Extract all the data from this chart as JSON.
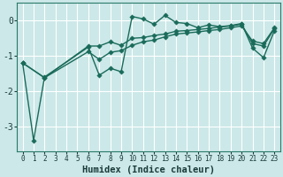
{
  "xlabel": "Humidex (Indice chaleur)",
  "xlim": [
    -0.5,
    23.5
  ],
  "ylim": [
    -3.7,
    0.5
  ],
  "xtick_labels": [
    "0",
    "1",
    "2",
    "3",
    "4",
    "5",
    "6",
    "7",
    "8",
    "9",
    "10",
    "11",
    "12",
    "13",
    "14",
    "15",
    "16",
    "17",
    "18",
    "19",
    "20",
    "21",
    "22",
    "23"
  ],
  "yticks": [
    0,
    -1,
    -2,
    -3
  ],
  "bg_color": "#cce8e8",
  "grid_color": "#ffffff",
  "line_color": "#1a6b5a",
  "line1_x": [
    0,
    1,
    2,
    6,
    7,
    8,
    9,
    10,
    11,
    12,
    13,
    14,
    15,
    16,
    17,
    18,
    19,
    20,
    21,
    22,
    23
  ],
  "line1_y": [
    -1.2,
    -3.4,
    -1.6,
    -0.75,
    -1.55,
    -1.35,
    -1.45,
    0.12,
    0.05,
    -0.1,
    0.15,
    -0.05,
    -0.08,
    -0.2,
    -0.12,
    -0.17,
    -0.14,
    -0.08,
    -0.78,
    -1.05,
    -0.28
  ],
  "line2_x": [
    0,
    2,
    6,
    7,
    8,
    9,
    10,
    11,
    12,
    13,
    14,
    15,
    16,
    17,
    18,
    19,
    20,
    21,
    22,
    23
  ],
  "line2_y": [
    -1.2,
    -1.62,
    -0.72,
    -0.72,
    -0.6,
    -0.7,
    -0.5,
    -0.48,
    -0.42,
    -0.38,
    -0.3,
    -0.28,
    -0.25,
    -0.22,
    -0.18,
    -0.15,
    -0.1,
    -0.65,
    -0.72,
    -0.22
  ],
  "line3_x": [
    0,
    2,
    6,
    7,
    8,
    9,
    10,
    11,
    12,
    13,
    14,
    15,
    16,
    17,
    18,
    19,
    20,
    21,
    22,
    23
  ],
  "line3_y": [
    -1.2,
    -1.62,
    -0.88,
    -1.1,
    -0.9,
    -0.85,
    -0.7,
    -0.6,
    -0.55,
    -0.46,
    -0.38,
    -0.35,
    -0.32,
    -0.28,
    -0.25,
    -0.2,
    -0.15,
    -0.58,
    -0.65,
    -0.2
  ],
  "font_name": "monospace",
  "tick_fontsize": 5.5,
  "label_fontsize": 7.5
}
